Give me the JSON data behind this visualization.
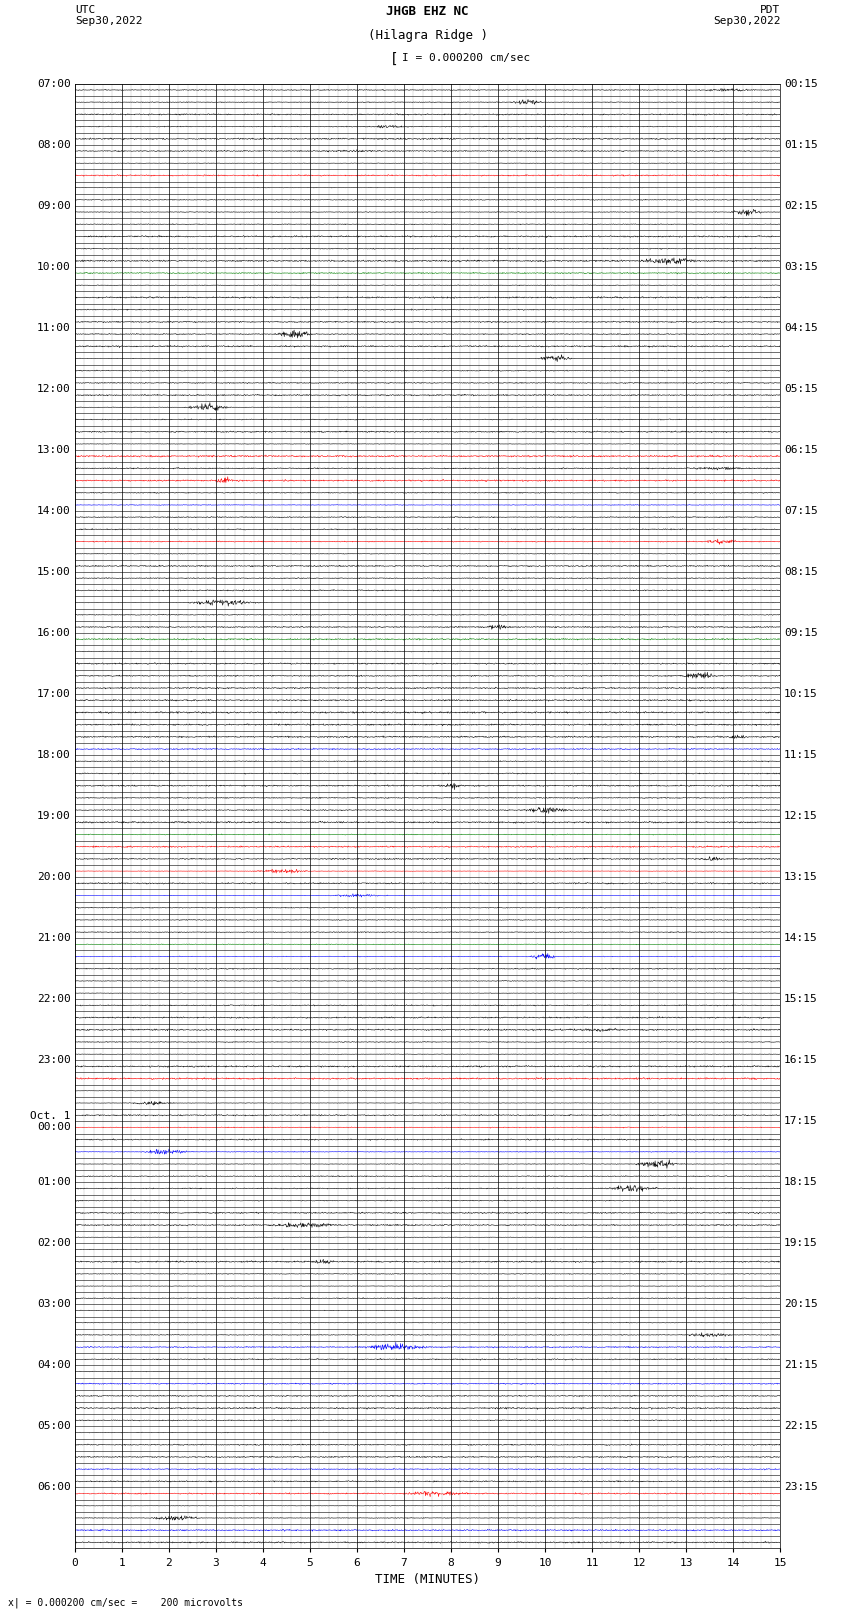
{
  "title_line1": "JHGB EHZ NC",
  "title_line2": "(Hilagra Ridge )",
  "scale_label": "I = 0.000200 cm/sec",
  "utc_label": "UTC\nSep30,2022",
  "pdt_label": "PDT\nSep30,2022",
  "bottom_label": "x| = 0.000200 cm/sec =    200 microvolts",
  "xlabel": "TIME (MINUTES)",
  "left_times": [
    "07:00",
    "",
    "",
    "",
    "",
    "08:00",
    "",
    "",
    "",
    "",
    "09:00",
    "",
    "",
    "",
    "",
    "10:00",
    "",
    "",
    "",
    "",
    "11:00",
    "",
    "",
    "",
    "",
    "12:00",
    "",
    "",
    "",
    "",
    "13:00",
    "",
    "",
    "",
    "",
    "14:00",
    "",
    "",
    "",
    "",
    "15:00",
    "",
    "",
    "",
    "",
    "16:00",
    "",
    "",
    "",
    "",
    "17:00",
    "",
    "",
    "",
    "",
    "18:00",
    "",
    "",
    "",
    "",
    "19:00",
    "",
    "",
    "",
    "",
    "20:00",
    "",
    "",
    "",
    "",
    "21:00",
    "",
    "",
    "",
    "",
    "22:00",
    "",
    "",
    "",
    "",
    "23:00",
    "",
    "",
    "",
    "",
    "Oct. 1\n00:00",
    "",
    "",
    "",
    "",
    "01:00",
    "",
    "",
    "",
    "",
    "02:00",
    "",
    "",
    "",
    "",
    "03:00",
    "",
    "",
    "",
    "",
    "04:00",
    "",
    "",
    "",
    "",
    "05:00",
    "",
    "",
    "",
    "",
    "06:00",
    "",
    "",
    "",
    ""
  ],
  "right_times": [
    "00:15",
    "",
    "",
    "",
    "",
    "01:15",
    "",
    "",
    "",
    "",
    "02:15",
    "",
    "",
    "",
    "",
    "03:15",
    "",
    "",
    "",
    "",
    "04:15",
    "",
    "",
    "",
    "",
    "05:15",
    "",
    "",
    "",
    "",
    "06:15",
    "",
    "",
    "",
    "",
    "07:15",
    "",
    "",
    "",
    "",
    "08:15",
    "",
    "",
    "",
    "",
    "09:15",
    "",
    "",
    "",
    "",
    "10:15",
    "",
    "",
    "",
    "",
    "11:15",
    "",
    "",
    "",
    "",
    "12:15",
    "",
    "",
    "",
    "",
    "13:15",
    "",
    "",
    "",
    "",
    "14:15",
    "",
    "",
    "",
    "",
    "15:15",
    "",
    "",
    "",
    "",
    "16:15",
    "",
    "",
    "",
    "",
    "17:15",
    "",
    "",
    "",
    "",
    "18:15",
    "",
    "",
    "",
    "",
    "19:15",
    "",
    "",
    "",
    "",
    "20:15",
    "",
    "",
    "",
    "",
    "21:15",
    "",
    "",
    "",
    "",
    "22:15",
    "",
    "",
    "",
    "",
    "23:15",
    "",
    "",
    "",
    ""
  ],
  "n_rows": 120,
  "n_minutes": 15,
  "bg_color": "#ffffff",
  "trace_color_normal": "#000000",
  "trace_color_red": "#ff0000",
  "trace_color_blue": "#0000ff",
  "trace_color_green": "#008000",
  "font_size": 8,
  "title_font_size": 9
}
